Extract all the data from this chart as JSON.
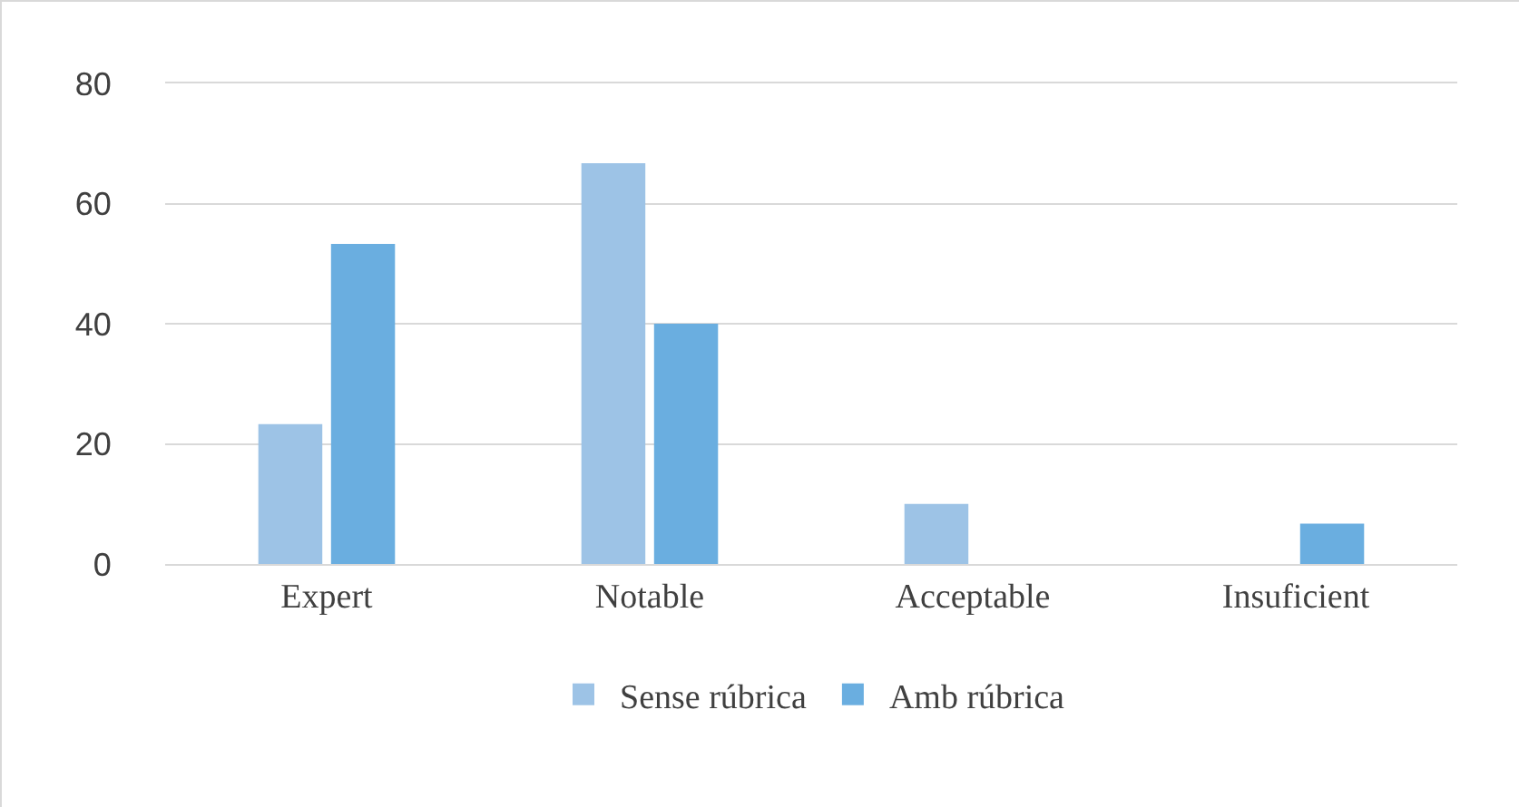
{
  "chart_data": {
    "type": "bar",
    "categories": [
      "Expert",
      "Notable",
      "Acceptable",
      "Insuficient"
    ],
    "series": [
      {
        "name": "Sense rúbrica",
        "color": "#9dc3e6",
        "values": [
          23.3,
          66.7,
          10,
          0
        ]
      },
      {
        "name": "Amb rúbrica",
        "color": "#6aaee0",
        "values": [
          53.3,
          40,
          0,
          6.7
        ]
      }
    ],
    "ylim": [
      0,
      80
    ],
    "yticks": [
      0,
      20,
      40,
      60,
      80
    ],
    "grid": "y",
    "legend": "bottom"
  }
}
